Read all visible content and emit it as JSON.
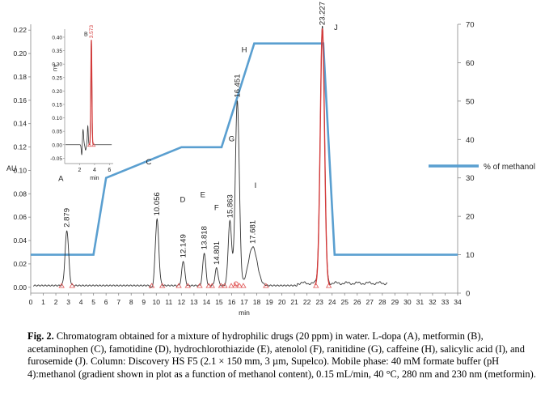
{
  "chart_data": {
    "type": "line",
    "x_unit_label": "min",
    "left_axis": {
      "label": "AU",
      "ticks": [
        0.0,
        0.02,
        0.04,
        0.06,
        0.08,
        0.1,
        0.12,
        0.14,
        0.16,
        0.18,
        0.2,
        0.22
      ],
      "tick_labels": [
        "0.00",
        "0.02",
        "0.04",
        "0.06",
        "0.08",
        "0.10",
        "0.12",
        "0.14",
        "0.16",
        "0.18",
        "0.20",
        "0.22"
      ],
      "range": [
        -0.005,
        0.225
      ]
    },
    "right_axis": {
      "label": "% of methanol",
      "ticks": [
        0,
        10,
        20,
        30,
        40,
        50,
        60,
        70
      ],
      "range": [
        0,
        70
      ]
    },
    "x_axis": {
      "range": [
        0,
        34
      ],
      "ticks": [
        0,
        1,
        2,
        3,
        4,
        5,
        6,
        7,
        8,
        9,
        10,
        11,
        12,
        13,
        14,
        15,
        16,
        17,
        18,
        19,
        20,
        21,
        22,
        23,
        24,
        25,
        26,
        27,
        28,
        29,
        30,
        31,
        32,
        33,
        34
      ]
    },
    "gradient_series": {
      "name": "% of methanol",
      "color": "#5a9fd0",
      "x": [
        0,
        5,
        6,
        12,
        15.2,
        17.8,
        23.3,
        24.2,
        34
      ],
      "y": [
        10,
        10,
        30,
        38,
        38,
        65,
        65,
        10,
        10
      ]
    },
    "peaks": [
      {
        "letter": "A",
        "rt": 2.879,
        "rt_label": "2.879",
        "height": 0.047,
        "width": 0.14
      },
      {
        "letter": "C",
        "rt": 10.056,
        "rt_label": "10.056",
        "height": 0.057,
        "width": 0.14
      },
      {
        "letter": "D",
        "rt": 12.149,
        "rt_label": "12.149",
        "height": 0.021,
        "width": 0.12
      },
      {
        "letter": "E",
        "rt": 13.818,
        "rt_label": "13.818",
        "height": 0.028,
        "width": 0.12
      },
      {
        "letter": "",
        "rt": 14.801,
        "rt_label": "14.801",
        "height": 0.015,
        "width": 0.12
      },
      {
        "letter": "F",
        "rt": 15.863,
        "rt_label": "15.863",
        "height": 0.055,
        "width": 0.14
      },
      {
        "letter": "G",
        "rt": 16.451,
        "rt_label": "16.451",
        "height": 0.158,
        "width": 0.16
      },
      {
        "letter": "I",
        "rt": 17.681,
        "rt_label": "17.681",
        "height": 0.033,
        "width": 0.35
      },
      {
        "letter": "J",
        "rt": 23.227,
        "rt_label": "23.227",
        "height": 0.22,
        "width": 0.17
      }
    ],
    "letter_labels": [
      {
        "text": "A",
        "x": 2.4,
        "y": 0.091
      },
      {
        "text": "C",
        "x": 9.4,
        "y": 0.105
      },
      {
        "text": "D",
        "x": 12.1,
        "y": 0.073
      },
      {
        "text": "E",
        "x": 13.7,
        "y": 0.077
      },
      {
        "text": "F",
        "x": 14.8,
        "y": 0.066
      },
      {
        "text": "G",
        "x": 16.0,
        "y": 0.125
      },
      {
        "text": "H",
        "x": 17.0,
        "y": 0.201
      },
      {
        "text": "I",
        "x": 17.9,
        "y": 0.085
      },
      {
        "text": "J",
        "x": 24.3,
        "y": 0.22
      }
    ],
    "inset": {
      "y_ticks": [
        -0.05,
        0.0,
        0.05,
        0.1,
        0.15,
        0.2,
        0.25,
        0.3,
        0.35,
        0.4
      ],
      "y_tick_labels": [
        "-0.05",
        "0.00",
        "0.05",
        "0.10",
        "0.15",
        "0.20",
        "0.25",
        "0.30",
        "0.35",
        "0.40"
      ],
      "y_range": [
        -0.07,
        0.43
      ],
      "x_ticks": [
        2,
        4,
        6
      ],
      "x_range": [
        0,
        6.5
      ],
      "x_label": "min",
      "y_label": "AU",
      "peak": {
        "letter": "B",
        "rt": 3.573,
        "rt_label": "3.573",
        "height": 0.39
      }
    }
  },
  "caption": {
    "fig_label": "Fig. 2.",
    "text": "Chromatogram obtained for a mixture of hydrophilic drugs (20 ppm) in water. L-dopa (A), metformin (B), acetaminophen (C), famotidine (D), hydrochlorothiazide (E), atenolol (F), ranitidine (G), caffeine (H), salicylic acid (I), and furosemide (J). Column: Discovery HS F5 (2.1 × 150 mm, 3 µm, Supelco). Mobile phase: 40 mM formate buffer (pH 4):methanol (gradient shown in plot as a function of methanol content), 0.15 mL/min, 40 °C, 280 nm and 230 nm (metformin)."
  }
}
